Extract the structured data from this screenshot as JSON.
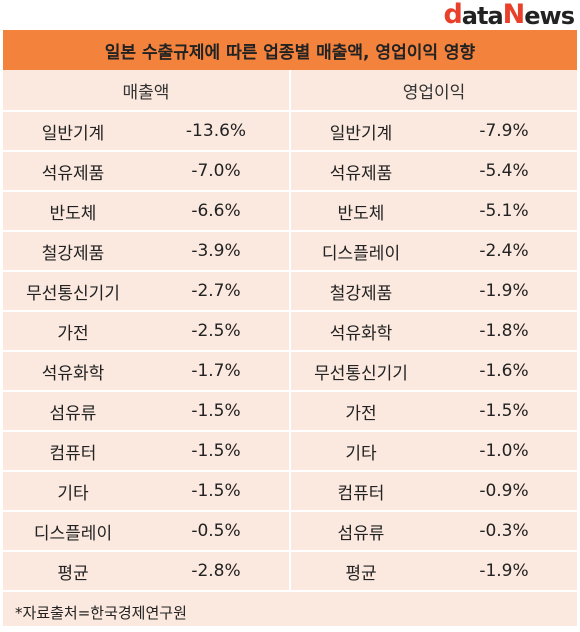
{
  "logo": {
    "d": "d",
    "ata": "ata",
    "n": "N",
    "ews": "ews"
  },
  "title": "일본 수출규제에 따른 업종별 매출액, 영업이익 영향",
  "headers": {
    "left": "매출액",
    "right": "영업이익"
  },
  "rows": [
    {
      "l_name": "일반기계",
      "l_val": "-13.6%",
      "r_name": "일반기계",
      "r_val": "-7.9%"
    },
    {
      "l_name": "석유제품",
      "l_val": "-7.0%",
      "r_name": "석유제품",
      "r_val": "-5.4%"
    },
    {
      "l_name": "반도체",
      "l_val": "-6.6%",
      "r_name": "반도체",
      "r_val": "-5.1%"
    },
    {
      "l_name": "철강제품",
      "l_val": "-3.9%",
      "r_name": "디스플레이",
      "r_val": "-2.4%"
    },
    {
      "l_name": "무선통신기기",
      "l_val": "-2.7%",
      "r_name": "철강제품",
      "r_val": "-1.9%"
    },
    {
      "l_name": "가전",
      "l_val": "-2.5%",
      "r_name": "석유화학",
      "r_val": "-1.8%"
    },
    {
      "l_name": "석유화학",
      "l_val": "-1.7%",
      "r_name": "무선통신기기",
      "r_val": "-1.6%"
    },
    {
      "l_name": "섬유류",
      "l_val": "-1.5%",
      "r_name": "가전",
      "r_val": "-1.5%"
    },
    {
      "l_name": "컴퓨터",
      "l_val": "-1.5%",
      "r_name": "기타",
      "r_val": "-1.0%"
    },
    {
      "l_name": "기타",
      "l_val": "-1.5%",
      "r_name": "컴퓨터",
      "r_val": "-0.9%"
    },
    {
      "l_name": "디스플레이",
      "l_val": "-0.5%",
      "r_name": "섬유류",
      "r_val": "-0.3%"
    },
    {
      "l_name": "평균",
      "l_val": "-2.8%",
      "r_name": "평균",
      "r_val": "-1.9%"
    }
  ],
  "source": "*자료출처=한국경제연구원",
  "colors": {
    "title_bg": "#f3823d",
    "card_bg": "#fbe9df",
    "logo_accent": "#e8402a"
  }
}
